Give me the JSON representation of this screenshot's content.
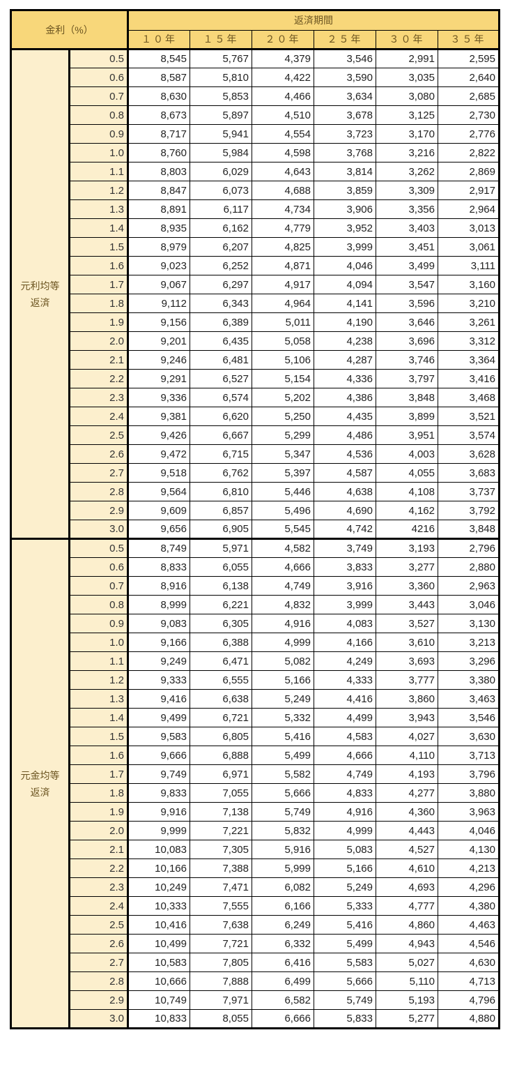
{
  "header": {
    "rate_label": "金利（%）",
    "period_label": "返済期間",
    "periods": [
      "１０年",
      "１５年",
      "２０年",
      "２５年",
      "３０年",
      "３５年"
    ]
  },
  "colors": {
    "header_bg": "#f8d77a",
    "label_bg": "#fcefcd"
  },
  "groups": [
    {
      "label_line1": "元利均等",
      "label_line2": "返済",
      "rows": [
        {
          "rate": "0.5",
          "values": [
            "8,545",
            "5,767",
            "4,379",
            "3,546",
            "2,991",
            "2,595"
          ]
        },
        {
          "rate": "0.6",
          "values": [
            "8,587",
            "5,810",
            "4,422",
            "3,590",
            "3,035",
            "2,640"
          ]
        },
        {
          "rate": "0.7",
          "values": [
            "8,630",
            "5,853",
            "4,466",
            "3,634",
            "3,080",
            "2,685"
          ]
        },
        {
          "rate": "0.8",
          "values": [
            "8,673",
            "5,897",
            "4,510",
            "3,678",
            "3,125",
            "2,730"
          ]
        },
        {
          "rate": "0.9",
          "values": [
            "8,717",
            "5,941",
            "4,554",
            "3,723",
            "3,170",
            "2,776"
          ]
        },
        {
          "rate": "1.0",
          "values": [
            "8,760",
            "5,984",
            "4,598",
            "3,768",
            "3,216",
            "2,822"
          ]
        },
        {
          "rate": "1.1",
          "values": [
            "8,803",
            "6,029",
            "4,643",
            "3,814",
            "3,262",
            "2,869"
          ]
        },
        {
          "rate": "1.2",
          "values": [
            "8,847",
            "6,073",
            "4,688",
            "3,859",
            "3,309",
            "2,917"
          ]
        },
        {
          "rate": "1.3",
          "values": [
            "8,891",
            "6,117",
            "4,734",
            "3,906",
            "3,356",
            "2,964"
          ]
        },
        {
          "rate": "1.4",
          "values": [
            "8,935",
            "6,162",
            "4,779",
            "3,952",
            "3,403",
            "3,013"
          ]
        },
        {
          "rate": "1.5",
          "values": [
            "8,979",
            "6,207",
            "4,825",
            "3,999",
            "3,451",
            "3,061"
          ]
        },
        {
          "rate": "1.6",
          "values": [
            "9,023",
            "6,252",
            "4,871",
            "4,046",
            "3,499",
            "3,111"
          ]
        },
        {
          "rate": "1.7",
          "values": [
            "9,067",
            "6,297",
            "4,917",
            "4,094",
            "3,547",
            "3,160"
          ]
        },
        {
          "rate": "1.8",
          "values": [
            "9,112",
            "6,343",
            "4,964",
            "4,141",
            "3,596",
            "3,210"
          ]
        },
        {
          "rate": "1.9",
          "values": [
            "9,156",
            "6,389",
            "5,011",
            "4,190",
            "3,646",
            "3,261"
          ]
        },
        {
          "rate": "2.0",
          "values": [
            "9,201",
            "6,435",
            "5,058",
            "4,238",
            "3,696",
            "3,312"
          ]
        },
        {
          "rate": "2.1",
          "values": [
            "9,246",
            "6,481",
            "5,106",
            "4,287",
            "3,746",
            "3,364"
          ]
        },
        {
          "rate": "2.2",
          "values": [
            "9,291",
            "6,527",
            "5,154",
            "4,336",
            "3,797",
            "3,416"
          ]
        },
        {
          "rate": "2.3",
          "values": [
            "9,336",
            "6,574",
            "5,202",
            "4,386",
            "3,848",
            "3,468"
          ]
        },
        {
          "rate": "2.4",
          "values": [
            "9,381",
            "6,620",
            "5,250",
            "4,435",
            "3,899",
            "3,521"
          ]
        },
        {
          "rate": "2.5",
          "values": [
            "9,426",
            "6,667",
            "5,299",
            "4,486",
            "3,951",
            "3,574"
          ]
        },
        {
          "rate": "2.6",
          "values": [
            "9,472",
            "6,715",
            "5,347",
            "4,536",
            "4,003",
            "3,628"
          ]
        },
        {
          "rate": "2.7",
          "values": [
            "9,518",
            "6,762",
            "5,397",
            "4,587",
            "4,055",
            "3,683"
          ]
        },
        {
          "rate": "2.8",
          "values": [
            "9,564",
            "6,810",
            "5,446",
            "4,638",
            "4,108",
            "3,737"
          ]
        },
        {
          "rate": "2.9",
          "values": [
            "9,609",
            "6,857",
            "5,496",
            "4,690",
            "4,162",
            "3,792"
          ]
        },
        {
          "rate": "3.0",
          "values": [
            "9,656",
            "6,905",
            "5,545",
            "4,742",
            "4216",
            "3,848"
          ]
        }
      ]
    },
    {
      "label_line1": "元金均等",
      "label_line2": "返済",
      "rows": [
        {
          "rate": "0.5",
          "values": [
            "8,749",
            "5,971",
            "4,582",
            "3,749",
            "3,193",
            "2,796"
          ]
        },
        {
          "rate": "0.6",
          "values": [
            "8,833",
            "6,055",
            "4,666",
            "3,833",
            "3,277",
            "2,880"
          ]
        },
        {
          "rate": "0.7",
          "values": [
            "8,916",
            "6,138",
            "4,749",
            "3,916",
            "3,360",
            "2,963"
          ]
        },
        {
          "rate": "0.8",
          "values": [
            "8,999",
            "6,221",
            "4,832",
            "3,999",
            "3,443",
            "3,046"
          ]
        },
        {
          "rate": "0.9",
          "values": [
            "9,083",
            "6,305",
            "4,916",
            "4,083",
            "3,527",
            "3,130"
          ]
        },
        {
          "rate": "1.0",
          "values": [
            "9,166",
            "6,388",
            "4,999",
            "4,166",
            "3,610",
            "3,213"
          ]
        },
        {
          "rate": "1.1",
          "values": [
            "9,249",
            "6,471",
            "5,082",
            "4,249",
            "3,693",
            "3,296"
          ]
        },
        {
          "rate": "1.2",
          "values": [
            "9,333",
            "6,555",
            "5,166",
            "4,333",
            "3,777",
            "3,380"
          ]
        },
        {
          "rate": "1.3",
          "values": [
            "9,416",
            "6,638",
            "5,249",
            "4,416",
            "3,860",
            "3,463"
          ]
        },
        {
          "rate": "1.4",
          "values": [
            "9,499",
            "6,721",
            "5,332",
            "4,499",
            "3,943",
            "3,546"
          ]
        },
        {
          "rate": "1.5",
          "values": [
            "9,583",
            "6,805",
            "5,416",
            "4,583",
            "4,027",
            "3,630"
          ]
        },
        {
          "rate": "1.6",
          "values": [
            "9,666",
            "6,888",
            "5,499",
            "4,666",
            "4,110",
            "3,713"
          ]
        },
        {
          "rate": "1.7",
          "values": [
            "9,749",
            "6,971",
            "5,582",
            "4,749",
            "4,193",
            "3,796"
          ]
        },
        {
          "rate": "1.8",
          "values": [
            "9,833",
            "7,055",
            "5,666",
            "4,833",
            "4,277",
            "3,880"
          ]
        },
        {
          "rate": "1.9",
          "values": [
            "9,916",
            "7,138",
            "5,749",
            "4,916",
            "4,360",
            "3,963"
          ]
        },
        {
          "rate": "2.0",
          "values": [
            "9,999",
            "7,221",
            "5,832",
            "4,999",
            "4,443",
            "4,046"
          ]
        },
        {
          "rate": "2.1",
          "values": [
            "10,083",
            "7,305",
            "5,916",
            "5,083",
            "4,527",
            "4,130"
          ]
        },
        {
          "rate": "2.2",
          "values": [
            "10,166",
            "7,388",
            "5,999",
            "5,166",
            "4,610",
            "4,213"
          ]
        },
        {
          "rate": "2.3",
          "values": [
            "10,249",
            "7,471",
            "6,082",
            "5,249",
            "4,693",
            "4,296"
          ]
        },
        {
          "rate": "2.4",
          "values": [
            "10,333",
            "7,555",
            "6,166",
            "5,333",
            "4,777",
            "4,380"
          ]
        },
        {
          "rate": "2.5",
          "values": [
            "10,416",
            "7,638",
            "6,249",
            "5,416",
            "4,860",
            "4,463"
          ]
        },
        {
          "rate": "2.6",
          "values": [
            "10,499",
            "7,721",
            "6,332",
            "5,499",
            "4,943",
            "4,546"
          ]
        },
        {
          "rate": "2.7",
          "values": [
            "10,583",
            "7,805",
            "6,416",
            "5,583",
            "5,027",
            "4,630"
          ]
        },
        {
          "rate": "2.8",
          "values": [
            "10,666",
            "7,888",
            "6,499",
            "5,666",
            "5,110",
            "4,713"
          ]
        },
        {
          "rate": "2.9",
          "values": [
            "10,749",
            "7,971",
            "6,582",
            "5,749",
            "5,193",
            "4,796"
          ]
        },
        {
          "rate": "3.0",
          "values": [
            "10,833",
            "8,055",
            "6,666",
            "5,833",
            "5,277",
            "4,880"
          ]
        }
      ]
    }
  ]
}
